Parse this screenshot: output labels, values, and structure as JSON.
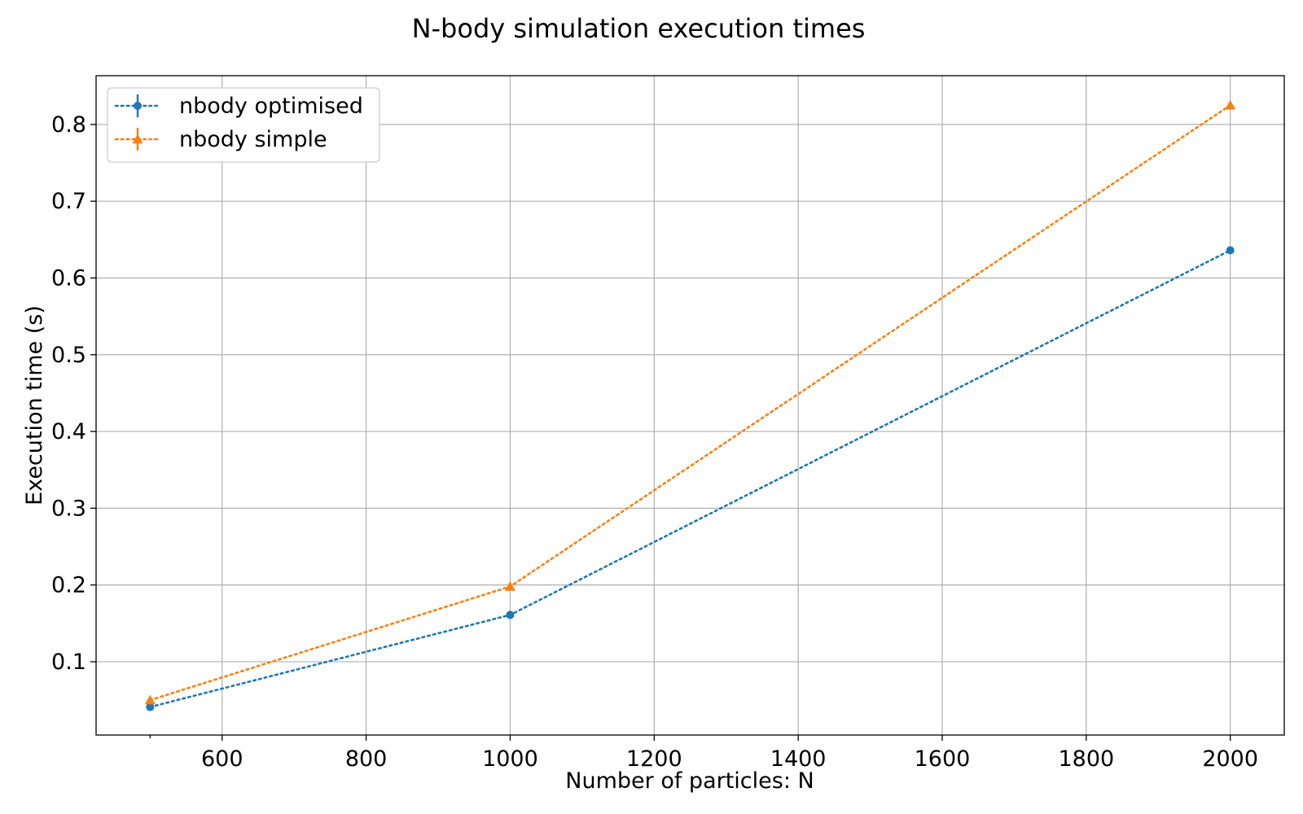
{
  "chart_data": {
    "type": "line",
    "title": "N-body simulation execution times",
    "xlabel": "Number of particles: N",
    "ylabel": "Execution time (s)",
    "x": [
      500,
      1000,
      2000
    ],
    "xlim": [
      425,
      2075
    ],
    "ylim": [
      0.0045,
      0.8635
    ],
    "xticks": [
      600,
      800,
      1000,
      1200,
      1400,
      1600,
      1800,
      2000
    ],
    "yticks": [
      0.1,
      0.2,
      0.3,
      0.4,
      0.5,
      0.6,
      0.7,
      0.8
    ],
    "grid": true,
    "legend_position": "top-left",
    "series": [
      {
        "name": "nbody optimised",
        "values": [
          0.041,
          0.161,
          0.636
        ],
        "color": "#1f77b4",
        "marker": "circle",
        "linestyle": "dotted"
      },
      {
        "name": "nbody simple",
        "values": [
          0.05,
          0.198,
          0.825
        ],
        "color": "#ff7f0e",
        "marker": "triangle",
        "linestyle": "dotted"
      }
    ]
  }
}
